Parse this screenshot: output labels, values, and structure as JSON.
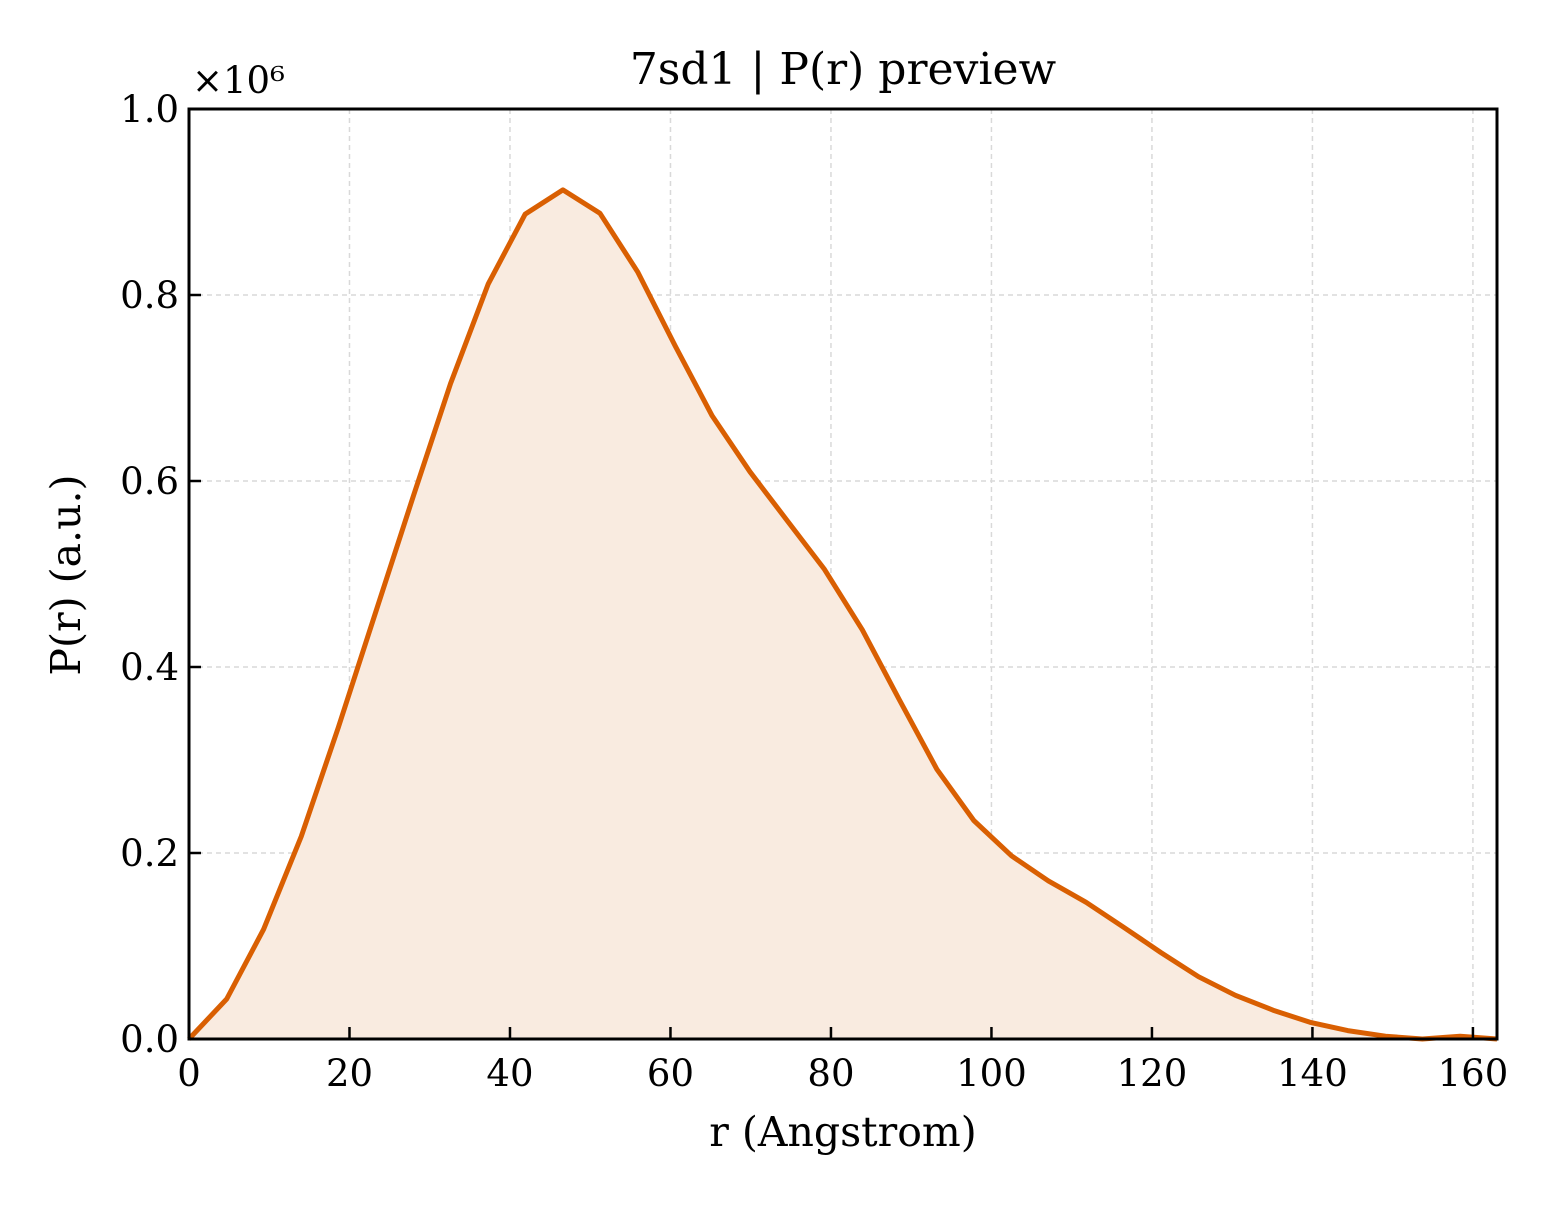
{
  "chart_data": {
    "type": "line",
    "title": "7sd1 | P(r) preview",
    "xlabel": "r (Angstrom)",
    "ylabel": "P(r) (a.u.)",
    "y_multiplier": "×10⁶",
    "xlim": [
      0,
      163
    ],
    "ylim": [
      0,
      1.0
    ],
    "x_ticks": [
      0,
      20,
      40,
      60,
      80,
      100,
      120,
      140,
      160
    ],
    "x_tick_labels": [
      "0",
      "20",
      "40",
      "60",
      "80",
      "100",
      "120",
      "140",
      "160"
    ],
    "y_ticks": [
      0,
      0.2,
      0.4,
      0.6,
      0.8,
      1.0
    ],
    "y_tick_labels": [
      "0.0",
      "0.2",
      "0.4",
      "0.6",
      "0.8",
      "1.0"
    ],
    "grid": true,
    "line_color": "#d95f02",
    "fill_color": "#f9ebe0",
    "series": [
      {
        "x": [
          0,
          4.7,
          9.3,
          14.0,
          18.6,
          23.3,
          28.0,
          32.6,
          37.3,
          41.9,
          46.6,
          51.2,
          55.9,
          60.6,
          65.2,
          69.9,
          74.5,
          79.2,
          83.9,
          88.5,
          93.2,
          97.8,
          102.5,
          107.1,
          111.8,
          116.5,
          121.1,
          125.8,
          130.4,
          135.1,
          139.7,
          144.4,
          149.1,
          153.7,
          158.4,
          163.0
        ],
        "y": [
          0.0,
          0.043,
          0.118,
          0.218,
          0.335,
          0.46,
          0.585,
          0.705,
          0.812,
          0.887,
          0.913,
          0.888,
          0.825,
          0.745,
          0.67,
          0.61,
          0.558,
          0.505,
          0.44,
          0.365,
          0.29,
          0.235,
          0.197,
          0.17,
          0.147,
          0.12,
          0.093,
          0.067,
          0.047,
          0.031,
          0.018,
          0.009,
          0.003,
          0.0,
          0.003,
          0.0
        ]
      }
    ]
  }
}
